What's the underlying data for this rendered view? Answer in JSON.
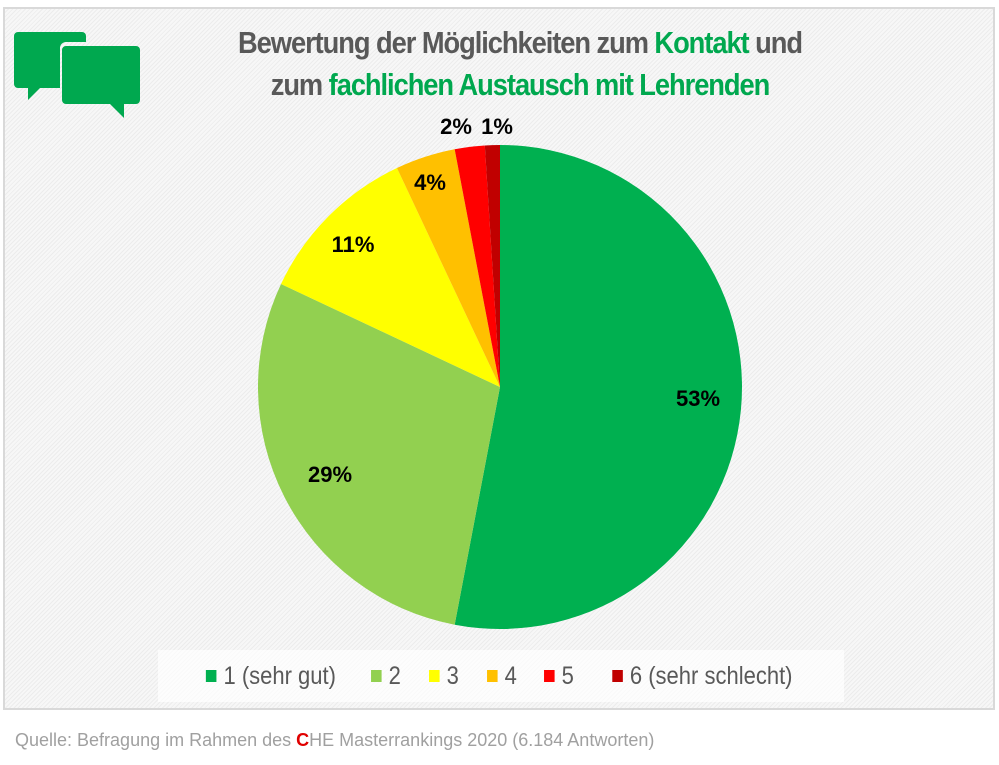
{
  "title": {
    "part1": "Bewertung der Möglichkeiten zum ",
    "highlight1": "Kontakt",
    "part2": " und",
    "part3": "zum ",
    "highlight2": "fachlichen Austausch mit Lehrenden"
  },
  "icon": "speech-bubbles-icon",
  "colors": {
    "accent": "#00a84f",
    "title_gray": "#595959",
    "source_red": "#e00000"
  },
  "chart_data": {
    "type": "pie",
    "title": "Bewertung der Möglichkeiten zum Kontakt und zum fachlichen Austausch mit Lehrenden",
    "categories": [
      "1 (sehr gut)",
      "2",
      "3",
      "4",
      "5",
      "6 (sehr schlecht)"
    ],
    "values": [
      53,
      29,
      11,
      4,
      2,
      1
    ],
    "labels": [
      "53%",
      "29%",
      "11%",
      "4%",
      "2%",
      "1%"
    ],
    "colors": [
      "#00b050",
      "#92d050",
      "#ffff00",
      "#ffc000",
      "#ff0000",
      "#c00000"
    ],
    "start": "12 o'clock",
    "direction": "clockwise",
    "legend_position": "bottom"
  },
  "source": {
    "prefix": "Quelle: Befragung im Rahmen des ",
    "c_letter": "C",
    "suffix": "HE Masterrankings 2020 (6.184 Antworten)"
  }
}
